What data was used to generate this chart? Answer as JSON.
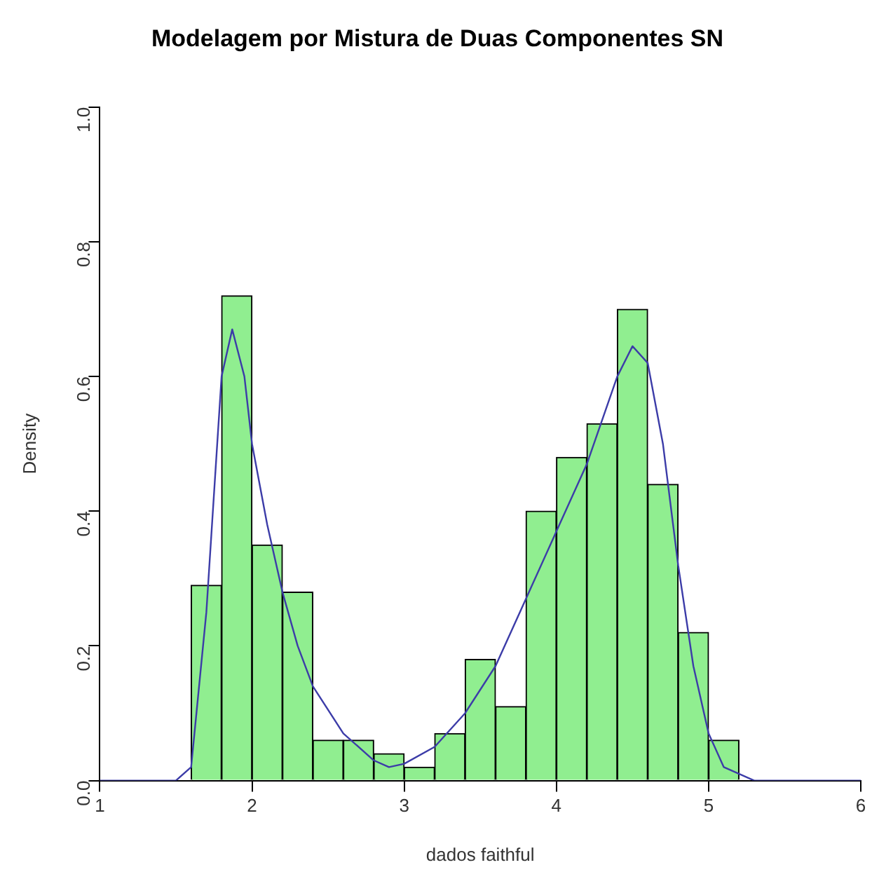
{
  "chart_data": {
    "type": "histogram",
    "title": "Modelagem por Mistura de Duas Componentes SN",
    "xlabel": "dados faithful",
    "ylabel": "Density",
    "bins": [
      1.6,
      1.8,
      2.0,
      2.2,
      2.4,
      2.6,
      2.8,
      3.0,
      3.2,
      3.4,
      3.6,
      3.8,
      4.0,
      4.2,
      4.4,
      4.6,
      4.8,
      5.0,
      5.2
    ],
    "values": [
      0.29,
      0.72,
      0.35,
      0.28,
      0.06,
      0.06,
      0.04,
      0.02,
      0.07,
      0.18,
      0.11,
      0.4,
      0.48,
      0.53,
      0.7,
      0.44,
      0.22,
      0.06
    ],
    "color": "#90ee90",
    "series": [
      {
        "type": "line",
        "color": "#3c3ca8",
        "x": [
          1.0,
          1.5,
          1.6,
          1.7,
          1.8,
          1.87,
          1.95,
          2.0,
          2.1,
          2.2,
          2.3,
          2.4,
          2.6,
          2.8,
          2.9,
          3.0,
          3.2,
          3.4,
          3.6,
          3.8,
          4.0,
          4.2,
          4.4,
          4.5,
          4.6,
          4.7,
          4.8,
          4.9,
          5.0,
          5.1,
          5.3,
          6.0
        ],
        "values": [
          0,
          0,
          0.02,
          0.25,
          0.6,
          0.67,
          0.6,
          0.5,
          0.38,
          0.28,
          0.2,
          0.14,
          0.07,
          0.03,
          0.02,
          0.025,
          0.05,
          0.1,
          0.17,
          0.27,
          0.37,
          0.47,
          0.6,
          0.645,
          0.62,
          0.5,
          0.32,
          0.17,
          0.07,
          0.02,
          0,
          0
        ]
      }
    ],
    "xlim": [
      1,
      6
    ],
    "xticks": [
      1,
      2,
      3,
      4,
      5,
      6
    ],
    "ylim": [
      0,
      1
    ],
    "yticks": [
      {
        "value": 0,
        "label": "0.0"
      },
      0.2,
      0.4,
      0.6,
      0.8,
      {
        "value": 1,
        "label": "1.0"
      }
    ],
    "grid": false,
    "legend": false
  }
}
